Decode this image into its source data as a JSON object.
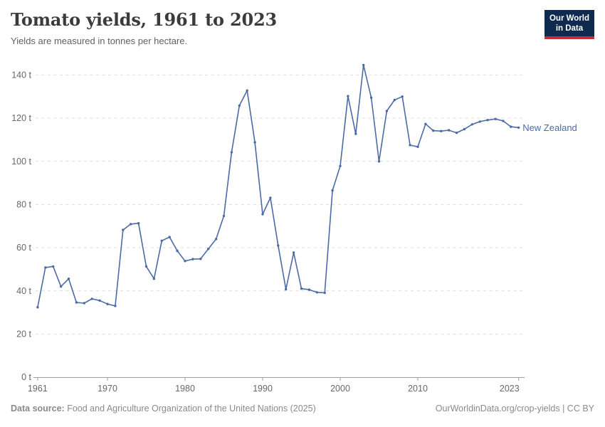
{
  "header": {
    "title": "Tomato yields, 1961 to 2023",
    "subtitle": "Yields are measured in tonnes per hectare."
  },
  "logo": {
    "line1": "Our World",
    "line2": "in Data",
    "bg": "#0e2a4e",
    "accent": "#c0313c"
  },
  "chart_data": {
    "type": "line",
    "title": "Tomato yields, 1961 to 2023",
    "xlabel": "",
    "ylabel": "tonnes per hectare",
    "xlim": [
      1961,
      2023
    ],
    "ylim": [
      0,
      148
    ],
    "grid": "horizontal-dashed",
    "legend_position": "end-of-line-label",
    "x_ticks": [
      1961,
      1970,
      1980,
      1990,
      2000,
      2010,
      2023
    ],
    "y_ticks": [
      0,
      20,
      40,
      60,
      80,
      100,
      120,
      140
    ],
    "y_tick_suffix": " t",
    "series": [
      {
        "name": "New Zealand",
        "color": "#4c6ba6",
        "x": [
          1961,
          1962,
          1963,
          1964,
          1965,
          1966,
          1967,
          1968,
          1969,
          1970,
          1971,
          1972,
          1973,
          1974,
          1975,
          1976,
          1977,
          1978,
          1979,
          1980,
          1981,
          1982,
          1983,
          1984,
          1985,
          1986,
          1987,
          1988,
          1989,
          1990,
          1991,
          1992,
          1993,
          1994,
          1995,
          1996,
          1997,
          1998,
          1999,
          2000,
          2001,
          2002,
          2003,
          2004,
          2005,
          2006,
          2007,
          2008,
          2009,
          2010,
          2011,
          2012,
          2013,
          2014,
          2015,
          2016,
          2017,
          2018,
          2019,
          2020,
          2021,
          2022,
          2023
        ],
        "values": [
          32.4,
          50.8,
          51.3,
          42.0,
          45.6,
          34.6,
          34.3,
          36.3,
          35.5,
          33.9,
          33.0,
          68.2,
          70.9,
          71.3,
          51.3,
          45.6,
          63.2,
          64.9,
          58.5,
          53.8,
          54.7,
          54.8,
          59.4,
          64.0,
          74.7,
          104.2,
          125.8,
          132.8,
          108.8,
          75.5,
          83.1,
          61.0,
          40.7,
          57.7,
          41.0,
          40.5,
          39.3,
          39.1,
          86.5,
          97.8,
          130.2,
          112.7,
          144.6,
          129.5,
          100.0,
          123.3,
          128.4,
          130.0,
          107.5,
          106.7,
          117.3,
          114.2,
          114.0,
          114.4,
          113.2,
          114.9,
          117.1,
          118.4,
          119.1,
          119.6,
          118.7,
          116.0,
          115.6
        ]
      }
    ],
    "colors": {
      "grid": "#dedede",
      "axis": "#9e9e9e",
      "tick_text": "#676767"
    }
  },
  "footer": {
    "source_label": "Data source:",
    "source": "Food and Agriculture Organization of the United Nations (2025)",
    "credit": "OurWorldinData.org/crop-yields | CC BY"
  }
}
